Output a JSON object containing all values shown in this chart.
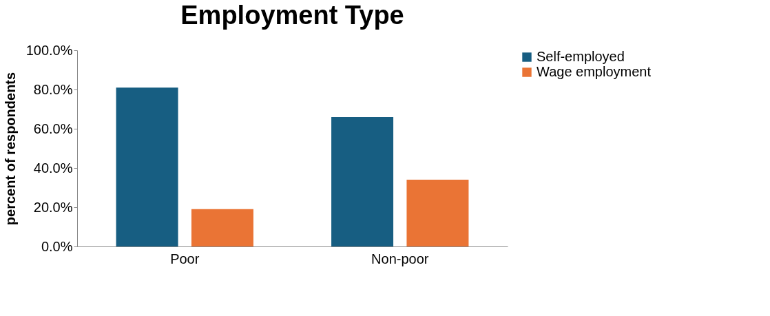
{
  "chart_data": {
    "type": "bar",
    "title": "Employment Type",
    "ylabel": "percent of respondents",
    "categories": [
      "Poor",
      "Non-poor"
    ],
    "series": [
      {
        "name": "Self-employed",
        "color": "#175e82",
        "values": [
          81,
          66
        ]
      },
      {
        "name": "Wage employment",
        "color": "#ea7435",
        "values": [
          19,
          34
        ]
      }
    ],
    "ylim": [
      0,
      100
    ],
    "yticks": [
      {
        "value": 0,
        "label": "0.0%"
      },
      {
        "value": 20,
        "label": "20.0%"
      },
      {
        "value": 40,
        "label": "40.0%"
      },
      {
        "value": 60,
        "label": "60.0%"
      },
      {
        "value": 80,
        "label": "80.0%"
      },
      {
        "value": 100,
        "label": "100.0%"
      }
    ],
    "grid": false,
    "legend": "right"
  }
}
